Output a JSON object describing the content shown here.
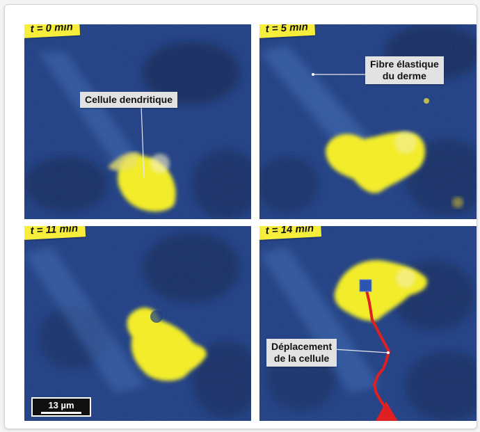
{
  "panels": [
    {
      "time_label": "t = 0 min"
    },
    {
      "time_label": "t = 5 min"
    },
    {
      "time_label": "t = 11 min"
    },
    {
      "time_label": "t = 14 min"
    }
  ],
  "annotations": {
    "dendritic_cell": "Cellule dendritique",
    "elastic_fiber_line1": "Fibre élastique",
    "elastic_fiber_line2": "du derme",
    "displacement_line1": "Déplacement",
    "displacement_line2": "de la cellule"
  },
  "scale_bar": {
    "label": "13 µm"
  },
  "colors": {
    "background_blue": "#1d3d86",
    "dark_blue": "#0e1f45",
    "fiber_blue": "#4b7fd0",
    "cell_yellow": "#f2ec2a",
    "label_yellow": "#f6ee3a",
    "track_red": "#e02020",
    "start_marker_blue": "#2a55b0"
  }
}
